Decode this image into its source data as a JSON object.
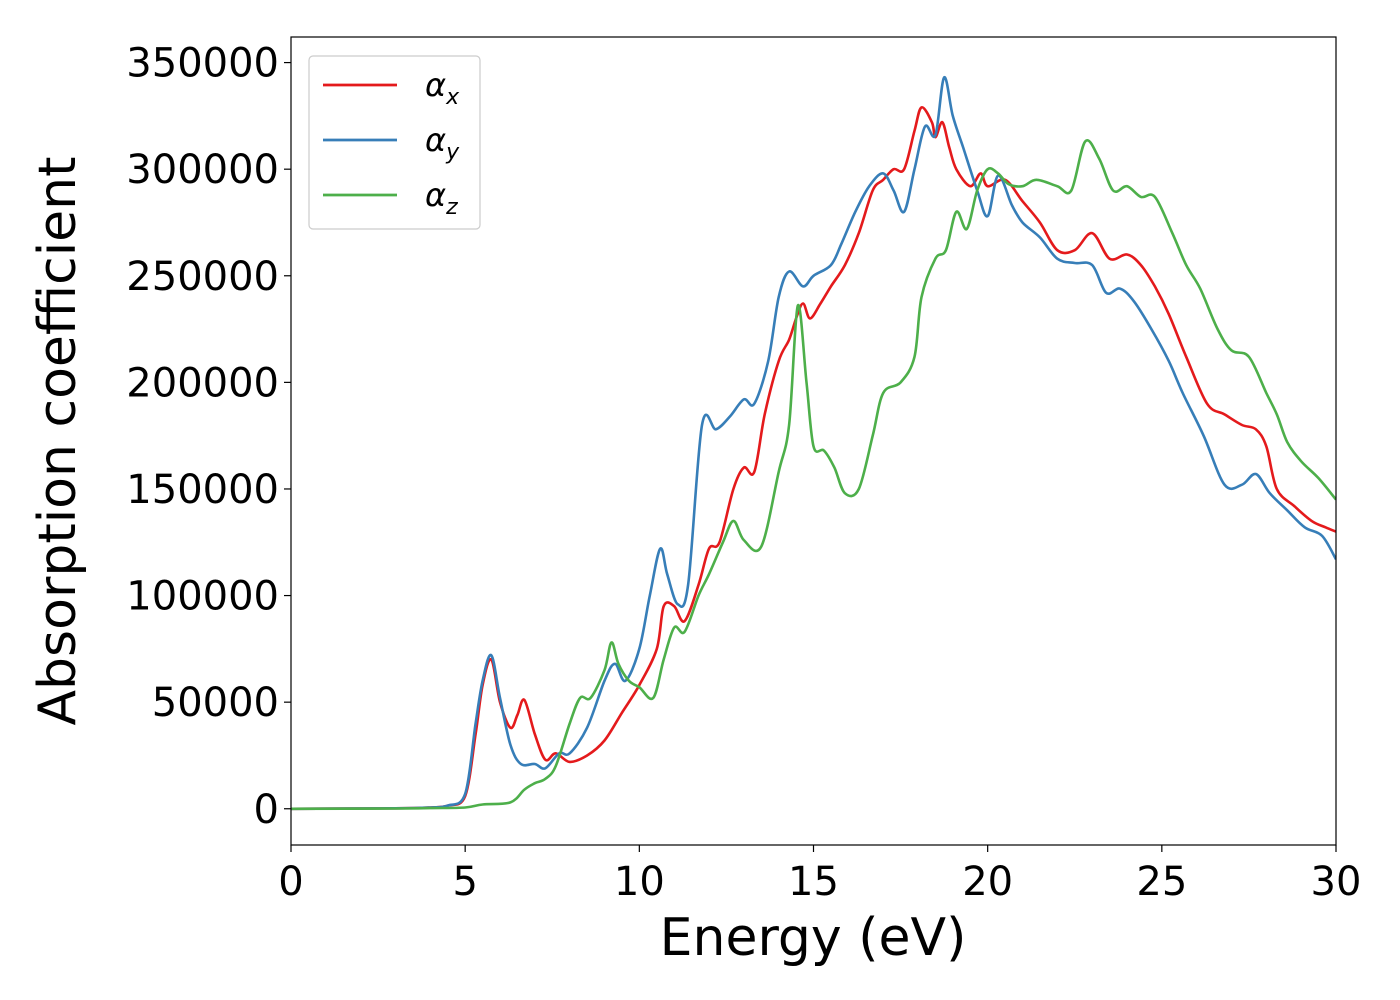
{
  "chart_data": {
    "type": "line",
    "title": "",
    "xlabel": "Energy (eV)",
    "ylabel": "Absorption coefficient",
    "xlim": [
      0,
      30
    ],
    "ylim": [
      -17000,
      362000
    ],
    "xticks": [
      0,
      5,
      10,
      15,
      20,
      25,
      30
    ],
    "yticks": [
      0,
      50000,
      100000,
      150000,
      200000,
      250000,
      300000,
      350000
    ],
    "grid": false,
    "legend_position": "top-left",
    "series": [
      {
        "name": "α_x",
        "legend_base": "α",
        "legend_sub": "x",
        "color": "#e41a1c",
        "points": [
          [
            0,
            0
          ],
          [
            3,
            200
          ],
          [
            4,
            600
          ],
          [
            4.5,
            1500
          ],
          [
            5,
            6000
          ],
          [
            5.3,
            35000
          ],
          [
            5.5,
            58000
          ],
          [
            5.75,
            70000
          ],
          [
            6,
            50000
          ],
          [
            6.3,
            38000
          ],
          [
            6.5,
            44000
          ],
          [
            6.7,
            51000
          ],
          [
            7,
            35000
          ],
          [
            7.3,
            23000
          ],
          [
            7.6,
            26000
          ],
          [
            8,
            22000
          ],
          [
            8.5,
            25000
          ],
          [
            9,
            32000
          ],
          [
            9.5,
            45000
          ],
          [
            10,
            58000
          ],
          [
            10.5,
            75000
          ],
          [
            10.7,
            95000
          ],
          [
            11,
            95000
          ],
          [
            11.3,
            88000
          ],
          [
            11.7,
            105000
          ],
          [
            12,
            122000
          ],
          [
            12.3,
            125000
          ],
          [
            12.7,
            150000
          ],
          [
            13,
            160000
          ],
          [
            13.3,
            158000
          ],
          [
            13.6,
            185000
          ],
          [
            14,
            210000
          ],
          [
            14.3,
            220000
          ],
          [
            14.5,
            230000
          ],
          [
            14.7,
            237000
          ],
          [
            14.9,
            230000
          ],
          [
            15.2,
            237000
          ],
          [
            15.5,
            245000
          ],
          [
            15.9,
            255000
          ],
          [
            16.3,
            270000
          ],
          [
            16.7,
            290000
          ],
          [
            17,
            295000
          ],
          [
            17.3,
            300000
          ],
          [
            17.6,
            300000
          ],
          [
            17.9,
            318000
          ],
          [
            18.1,
            329000
          ],
          [
            18.4,
            322000
          ],
          [
            18.5,
            315000
          ],
          [
            18.7,
            322000
          ],
          [
            18.9,
            310000
          ],
          [
            19.1,
            300000
          ],
          [
            19.5,
            292000
          ],
          [
            19.8,
            298000
          ],
          [
            20,
            292000
          ],
          [
            20.5,
            295000
          ],
          [
            21,
            285000
          ],
          [
            21.5,
            275000
          ],
          [
            22,
            262000
          ],
          [
            22.5,
            262000
          ],
          [
            23,
            270000
          ],
          [
            23.5,
            258000
          ],
          [
            24,
            260000
          ],
          [
            24.4,
            255000
          ],
          [
            24.8,
            245000
          ],
          [
            25.2,
            232000
          ],
          [
            25.7,
            212000
          ],
          [
            26.3,
            190000
          ],
          [
            26.8,
            185000
          ],
          [
            27.3,
            180000
          ],
          [
            27.7,
            178000
          ],
          [
            28,
            170000
          ],
          [
            28.3,
            150000
          ],
          [
            28.8,
            142000
          ],
          [
            29.3,
            135000
          ],
          [
            29.7,
            132000
          ],
          [
            30,
            130000
          ]
        ]
      },
      {
        "name": "α_y",
        "legend_base": "α",
        "legend_sub": "y",
        "color": "#377eb8",
        "points": [
          [
            0,
            0
          ],
          [
            3,
            200
          ],
          [
            4,
            600
          ],
          [
            4.5,
            1500
          ],
          [
            5,
            7000
          ],
          [
            5.3,
            40000
          ],
          [
            5.5,
            60000
          ],
          [
            5.75,
            72000
          ],
          [
            6,
            52000
          ],
          [
            6.3,
            30000
          ],
          [
            6.6,
            21000
          ],
          [
            7,
            21000
          ],
          [
            7.3,
            19000
          ],
          [
            7.7,
            26000
          ],
          [
            8,
            26000
          ],
          [
            8.5,
            38000
          ],
          [
            9,
            60000
          ],
          [
            9.3,
            68000
          ],
          [
            9.6,
            60000
          ],
          [
            10,
            75000
          ],
          [
            10.3,
            100000
          ],
          [
            10.6,
            122000
          ],
          [
            10.8,
            110000
          ],
          [
            11.1,
            96000
          ],
          [
            11.4,
            105000
          ],
          [
            11.8,
            180000
          ],
          [
            12.2,
            178000
          ],
          [
            12.6,
            184000
          ],
          [
            13,
            192000
          ],
          [
            13.3,
            190000
          ],
          [
            13.7,
            210000
          ],
          [
            14,
            240000
          ],
          [
            14.3,
            252000
          ],
          [
            14.7,
            245000
          ],
          [
            15,
            250000
          ],
          [
            15.5,
            255000
          ],
          [
            15.8,
            265000
          ],
          [
            16.2,
            280000
          ],
          [
            16.6,
            292000
          ],
          [
            17,
            298000
          ],
          [
            17.3,
            290000
          ],
          [
            17.6,
            280000
          ],
          [
            17.9,
            300000
          ],
          [
            18.2,
            320000
          ],
          [
            18.5,
            316000
          ],
          [
            18.75,
            343000
          ],
          [
            19,
            325000
          ],
          [
            19.3,
            310000
          ],
          [
            19.7,
            290000
          ],
          [
            20,
            278000
          ],
          [
            20.3,
            297000
          ],
          [
            20.7,
            283000
          ],
          [
            21,
            275000
          ],
          [
            21.5,
            268000
          ],
          [
            22,
            258000
          ],
          [
            22.5,
            256000
          ],
          [
            23,
            255000
          ],
          [
            23.4,
            242000
          ],
          [
            23.8,
            244000
          ],
          [
            24.2,
            238000
          ],
          [
            24.7,
            225000
          ],
          [
            25.2,
            210000
          ],
          [
            25.6,
            195000
          ],
          [
            26.2,
            175000
          ],
          [
            26.8,
            152000
          ],
          [
            27.3,
            152000
          ],
          [
            27.7,
            157000
          ],
          [
            28.1,
            148000
          ],
          [
            28.6,
            140000
          ],
          [
            29.1,
            132000
          ],
          [
            29.6,
            128000
          ],
          [
            30,
            117000
          ]
        ]
      },
      {
        "name": "α_z",
        "legend_base": "α",
        "legend_sub": "z",
        "color": "#4daf4a",
        "points": [
          [
            0,
            0
          ],
          [
            3,
            100
          ],
          [
            4,
            300
          ],
          [
            5,
            600
          ],
          [
            5.5,
            2000
          ],
          [
            6.3,
            3000
          ],
          [
            6.7,
            9000
          ],
          [
            7,
            12000
          ],
          [
            7.3,
            14000
          ],
          [
            7.6,
            20000
          ],
          [
            8,
            40000
          ],
          [
            8.3,
            52000
          ],
          [
            8.6,
            52000
          ],
          [
            9,
            65000
          ],
          [
            9.2,
            78000
          ],
          [
            9.4,
            68000
          ],
          [
            9.7,
            60000
          ],
          [
            10,
            57000
          ],
          [
            10.4,
            52000
          ],
          [
            10.7,
            70000
          ],
          [
            11,
            85000
          ],
          [
            11.3,
            83000
          ],
          [
            11.7,
            100000
          ],
          [
            12,
            110000
          ],
          [
            12.4,
            125000
          ],
          [
            12.7,
            135000
          ],
          [
            13,
            126000
          ],
          [
            13.5,
            123000
          ],
          [
            14,
            158000
          ],
          [
            14.3,
            180000
          ],
          [
            14.55,
            236000
          ],
          [
            14.8,
            200000
          ],
          [
            15,
            170000
          ],
          [
            15.3,
            168000
          ],
          [
            15.6,
            160000
          ],
          [
            15.9,
            148000
          ],
          [
            16.3,
            150000
          ],
          [
            16.7,
            175000
          ],
          [
            17,
            195000
          ],
          [
            17.5,
            200000
          ],
          [
            17.9,
            212000
          ],
          [
            18.1,
            240000
          ],
          [
            18.5,
            258000
          ],
          [
            18.8,
            262000
          ],
          [
            19.1,
            280000
          ],
          [
            19.4,
            272000
          ],
          [
            19.7,
            290000
          ],
          [
            20,
            300000
          ],
          [
            20.3,
            298000
          ],
          [
            20.6,
            293000
          ],
          [
            21,
            292000
          ],
          [
            21.4,
            295000
          ],
          [
            22,
            292000
          ],
          [
            22.4,
            290000
          ],
          [
            22.8,
            313000
          ],
          [
            23.2,
            305000
          ],
          [
            23.6,
            290000
          ],
          [
            24,
            292000
          ],
          [
            24.4,
            287000
          ],
          [
            24.8,
            287000
          ],
          [
            25.3,
            270000
          ],
          [
            25.7,
            255000
          ],
          [
            26.1,
            244000
          ],
          [
            26.6,
            225000
          ],
          [
            27,
            215000
          ],
          [
            27.5,
            212000
          ],
          [
            28,
            195000
          ],
          [
            28.3,
            185000
          ],
          [
            28.6,
            172000
          ],
          [
            29,
            163000
          ],
          [
            29.5,
            155000
          ],
          [
            30,
            145000
          ]
        ]
      }
    ]
  }
}
